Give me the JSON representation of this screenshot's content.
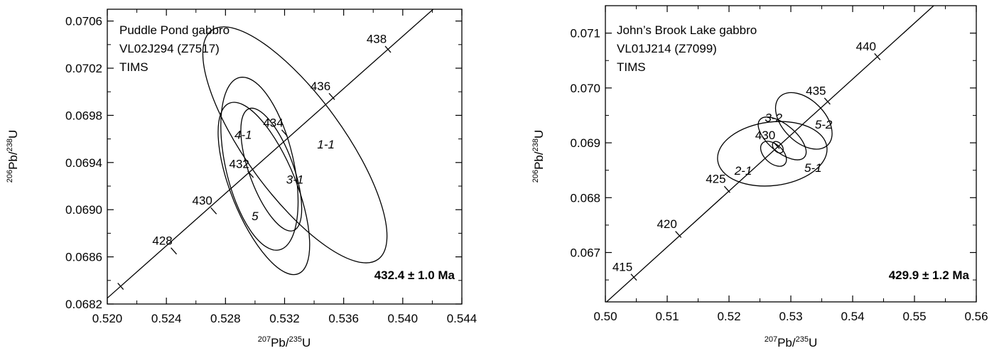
{
  "chart_data": [
    {
      "type": "scatter",
      "title": "",
      "xlabel": "207Pb/235U",
      "ylabel": "206Pb/238U",
      "xlim": [
        0.52,
        0.544
      ],
      "ylim": [
        0.0682,
        0.0707
      ],
      "xticks": [
        "0.520",
        "0.524",
        "0.528",
        "0.532",
        "0.536",
        "0.540",
        "0.544"
      ],
      "yticks": [
        "0.0682",
        "0.0686",
        "0.0690",
        "0.0694",
        "0.0698",
        "0.0702",
        "0.0706"
      ],
      "annotation_lines": [
        "Puddle Pond gabbro",
        "VL02J294 (Z7517)",
        "TIMS"
      ],
      "age_result": "432.4 ± 1.0 Ma",
      "concordia_ticks": [
        {
          "label": "",
          "x": 0.5209,
          "y": 0.06835
        },
        {
          "label": "428",
          "x": 0.5245,
          "y": 0.06865
        },
        {
          "label": "430",
          "x": 0.5272,
          "y": 0.06899
        },
        {
          "label": "432",
          "x": 0.5297,
          "y": 0.0693
        },
        {
          "label": "434",
          "x": 0.532,
          "y": 0.06965
        },
        {
          "label": "436",
          "x": 0.5352,
          "y": 0.06996
        },
        {
          "label": "438",
          "x": 0.539,
          "y": 0.07036
        }
      ],
      "ellipses": [
        {
          "label": "1-1",
          "cx": 0.5327,
          "cy": 0.06955,
          "rx": 0.0033,
          "ry": 0.0012,
          "angle": -36
        },
        {
          "label": "4-1",
          "cx": 0.5303,
          "cy": 0.06939,
          "rx": 0.0023,
          "ry": 0.00075,
          "angle": -13
        },
        {
          "label": "3-1",
          "cx": 0.5311,
          "cy": 0.06934,
          "rx": 0.0015,
          "ry": 0.00055,
          "angle": -20
        },
        {
          "label": "5",
          "cx": 0.5306,
          "cy": 0.06918,
          "rx": 0.0022,
          "ry": 0.00078,
          "angle": -22
        }
      ],
      "ellipse_labels": [
        {
          "text": "1-1",
          "x": 0.5348,
          "y": 0.06952
        },
        {
          "text": "4-1",
          "x": 0.5292,
          "y": 0.0696
        },
        {
          "text": "3-1",
          "x": 0.5327,
          "y": 0.06922
        },
        {
          "text": "5",
          "x": 0.53,
          "y": 0.06891
        }
      ]
    },
    {
      "type": "scatter",
      "title": "",
      "xlabel": "207Pb/235U",
      "ylabel": "206Pb/238U",
      "xlim": [
        0.5,
        0.56
      ],
      "ylim": [
        0.0661,
        0.0715
      ],
      "xticks": [
        "0.50",
        "0.51",
        "0.52",
        "0.53",
        "0.54",
        "0.55",
        "0.56"
      ],
      "yticks": [
        "0.067",
        "0.068",
        "0.069",
        "0.070",
        "0.071"
      ],
      "annotation_lines": [
        "John’s Brook Lake gabbro",
        "VL01J214 (Z7099)",
        "TIMS"
      ],
      "age_result": "429.9 ± 1.2 Ma",
      "concordia_ticks": [
        {
          "label": "415",
          "x": 0.5046,
          "y": 0.06655
        },
        {
          "label": "420",
          "x": 0.5118,
          "y": 0.06733
        },
        {
          "label": "425",
          "x": 0.5197,
          "y": 0.06815
        },
        {
          "label": "430",
          "x": 0.5277,
          "y": 0.06895
        },
        {
          "label": "435",
          "x": 0.5359,
          "y": 0.06976
        },
        {
          "label": "440",
          "x": 0.544,
          "y": 0.07057
        }
      ],
      "ellipses": [
        {
          "label": "5-1",
          "cx": 0.527,
          "cy": 0.0688,
          "rx": 0.0089,
          "ry": 0.00058,
          "angle": -7
        },
        {
          "label": "2-1",
          "cx": 0.5272,
          "cy": 0.0688,
          "rx": 0.0015,
          "ry": 0.00028,
          "angle": -47
        },
        {
          "label": "3-2",
          "cx": 0.5286,
          "cy": 0.06908,
          "rx": 0.0022,
          "ry": 0.00053,
          "angle": -50
        },
        {
          "label": "5-2",
          "cx": 0.5321,
          "cy": 0.0694,
          "rx": 0.0034,
          "ry": 0.00062,
          "angle": -45
        },
        {
          "label": "430",
          "cx": 0.5279,
          "cy": 0.06892,
          "rx": 0.0007,
          "ry": 0.00012,
          "angle": -40
        }
      ],
      "ellipse_labels": [
        {
          "text": "3-2",
          "x": 0.5272,
          "y": 0.06938
        },
        {
          "text": "5-2",
          "x": 0.5353,
          "y": 0.06926
        },
        {
          "text": "5-1",
          "x": 0.5336,
          "y": 0.06847
        },
        {
          "text": "2-1",
          "x": 0.5223,
          "y": 0.06842
        }
      ]
    }
  ]
}
